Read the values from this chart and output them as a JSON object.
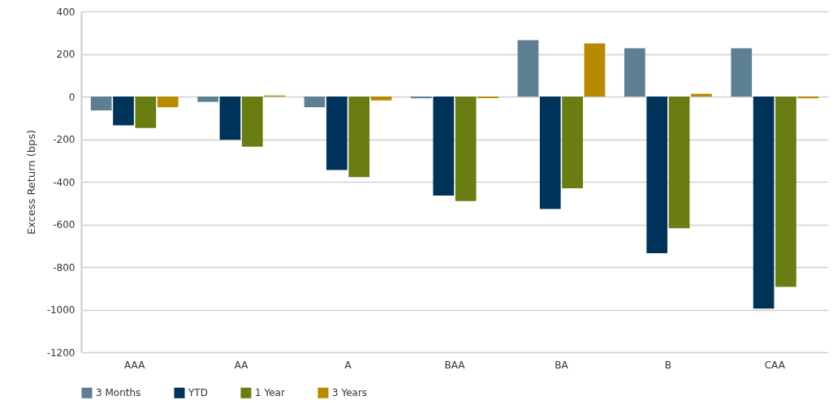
{
  "chart_data": {
    "type": "bar",
    "ylabel": "Excess Return (bps)",
    "categories": [
      "AAA",
      "AA",
      "A",
      "BAA",
      "BA",
      "B",
      "CAA"
    ],
    "series": [
      {
        "name": "3 Months",
        "color": "#5d7f93",
        "values": [
          -65,
          -25,
          -50,
          -8,
          265,
          227,
          227
        ]
      },
      {
        "name": "YTD",
        "color": "#00335a",
        "values": [
          -135,
          -203,
          -345,
          -465,
          -528,
          -735,
          -995
        ]
      },
      {
        "name": "1 Year",
        "color": "#6a7d12",
        "values": [
          -148,
          -235,
          -378,
          -490,
          -430,
          -618,
          -893
        ]
      },
      {
        "name": "3 Years",
        "color": "#b98a00",
        "values": [
          -50,
          5,
          -18,
          -8,
          250,
          13,
          -8
        ]
      }
    ],
    "ylim": [
      -1200,
      400
    ],
    "yticks": [
      -1200,
      -1000,
      -800,
      -600,
      -400,
      -200,
      0,
      200,
      400
    ],
    "grid": "y",
    "legend": "bottom"
  }
}
